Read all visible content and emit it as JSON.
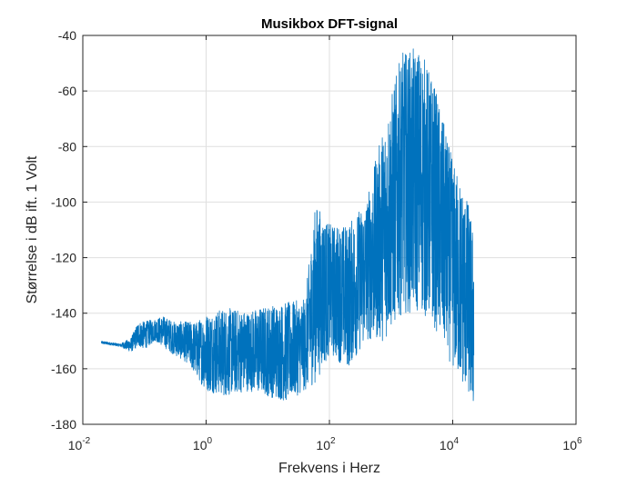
{
  "chart_data": {
    "type": "line",
    "title": "Musikbox DFT-signal",
    "xlabel": "Frekvens i Herz",
    "ylabel": "Størrelse i dB ift. 1 Volt",
    "xscale": "log",
    "xlim": [
      0.01,
      1000000
    ],
    "ylim": [
      -180,
      -40
    ],
    "grid": true,
    "series_color": "#0072bd",
    "x_ticks": [
      {
        "base": "10",
        "exp": "-2",
        "value": 0.01
      },
      {
        "base": "10",
        "exp": "0",
        "value": 1
      },
      {
        "base": "10",
        "exp": "2",
        "value": 100
      },
      {
        "base": "10",
        "exp": "4",
        "value": 10000
      },
      {
        "base": "10",
        "exp": "6",
        "value": 1000000
      }
    ],
    "y_ticks": [
      "-40",
      "-60",
      "-80",
      "-100",
      "-120",
      "-140",
      "-160",
      "-180"
    ],
    "y_tick_values": [
      -40,
      -60,
      -80,
      -100,
      -120,
      -140,
      -160,
      -180
    ],
    "series": [
      {
        "envelope": [
          {
            "x": 0.02,
            "min": -151,
            "max": -150
          },
          {
            "x": 0.04,
            "min": -152,
            "max": -151
          },
          {
            "x": 0.06,
            "min": -154,
            "max": -149
          },
          {
            "x": 0.08,
            "min": -152,
            "max": -143
          },
          {
            "x": 0.1,
            "min": -153,
            "max": -143
          },
          {
            "x": 0.15,
            "min": -150,
            "max": -142
          },
          {
            "x": 0.2,
            "min": -152,
            "max": -141
          },
          {
            "x": 0.3,
            "min": -155,
            "max": -143
          },
          {
            "x": 0.5,
            "min": -158,
            "max": -143
          },
          {
            "x": 0.7,
            "min": -163,
            "max": -143
          },
          {
            "x": 1,
            "min": -168,
            "max": -140
          },
          {
            "x": 2,
            "min": -170,
            "max": -138
          },
          {
            "x": 5,
            "min": -168,
            "max": -139
          },
          {
            "x": 10,
            "min": -170,
            "max": -137
          },
          {
            "x": 20,
            "min": -172,
            "max": -136
          },
          {
            "x": 40,
            "min": -168,
            "max": -135
          },
          {
            "x": 60,
            "min": -165,
            "max": -100
          },
          {
            "x": 100,
            "min": -155,
            "max": -108
          },
          {
            "x": 200,
            "min": -160,
            "max": -108
          },
          {
            "x": 400,
            "min": -150,
            "max": -99
          },
          {
            "x": 800,
            "min": -150,
            "max": -70
          },
          {
            "x": 1500,
            "min": -140,
            "max": -46
          },
          {
            "x": 3000,
            "min": -140,
            "max": -44
          },
          {
            "x": 5000,
            "min": -145,
            "max": -57
          },
          {
            "x": 10000,
            "min": -160,
            "max": -85
          },
          {
            "x": 18000,
            "min": -170,
            "max": -100
          },
          {
            "x": 22000,
            "min": -176,
            "max": -112
          }
        ]
      }
    ]
  }
}
